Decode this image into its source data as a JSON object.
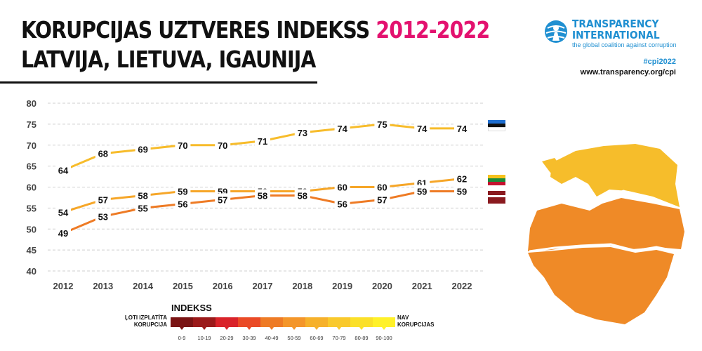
{
  "header": {
    "title_line1": "KORUPCIJAS UZTVERES INDEKSS ",
    "title_accent": "2012-2022",
    "title_line2": "LATVIJA, LIETUVA, IGAUNIJA"
  },
  "brand": {
    "name_line1": "TRANSPARENCY",
    "name_line2": "INTERNATIONAL",
    "tagline": "the global coalition against corruption",
    "hashtag": "#cpi2022",
    "url": "www.transparency.org/cpi"
  },
  "colors": {
    "estonia": "#f7bc2b",
    "lithuania": "#f6a628",
    "latvia": "#ee7b25",
    "accent": "#e3126f",
    "brand_blue": "#1f8fd1"
  },
  "chart_data": {
    "type": "line",
    "title": "KORUPCIJAS UZTVERES INDEKSS 2012-2022",
    "xlabel": "",
    "ylabel": "",
    "x": [
      "2012",
      "2013",
      "2014",
      "2015",
      "2016",
      "2017",
      "2018",
      "2019",
      "2020",
      "2021",
      "2022"
    ],
    "ylim": [
      40,
      80
    ],
    "yticks": [
      "40",
      "45",
      "50",
      "55",
      "60",
      "65",
      "70",
      "75",
      "80"
    ],
    "grid": "horizontal-dashed",
    "legend": "country flags at right end of lines",
    "series": [
      {
        "key": "estonia",
        "values": [
          64,
          68,
          69,
          70,
          70,
          71,
          73,
          74,
          75,
          74,
          74
        ]
      },
      {
        "key": "lithuania",
        "values": [
          54,
          57,
          58,
          59,
          59,
          59,
          59,
          60,
          60,
          61,
          62
        ]
      },
      {
        "key": "latvia",
        "values": [
          49,
          53,
          55,
          56,
          57,
          58,
          58,
          56,
          57,
          59,
          59
        ]
      }
    ]
  },
  "legend": {
    "title": "INDEKSS",
    "left_line1": "ĻOTI IZPLATĪTA",
    "left_line2": "KORUPCIJA",
    "right_line1": "NAV",
    "right_line2": "KORUPCIJAS",
    "ranges": [
      "0-9",
      "10-19",
      "20-29",
      "30-39",
      "40-49",
      "50-59",
      "60-69",
      "70-79",
      "80-89",
      "90-100"
    ],
    "colors": [
      "#7a1414",
      "#9b1a1a",
      "#d9232a",
      "#ea4a26",
      "#ee7b25",
      "#f4962a",
      "#f6b12b",
      "#f9c92c",
      "#fbe02a",
      "#fff12a"
    ]
  }
}
